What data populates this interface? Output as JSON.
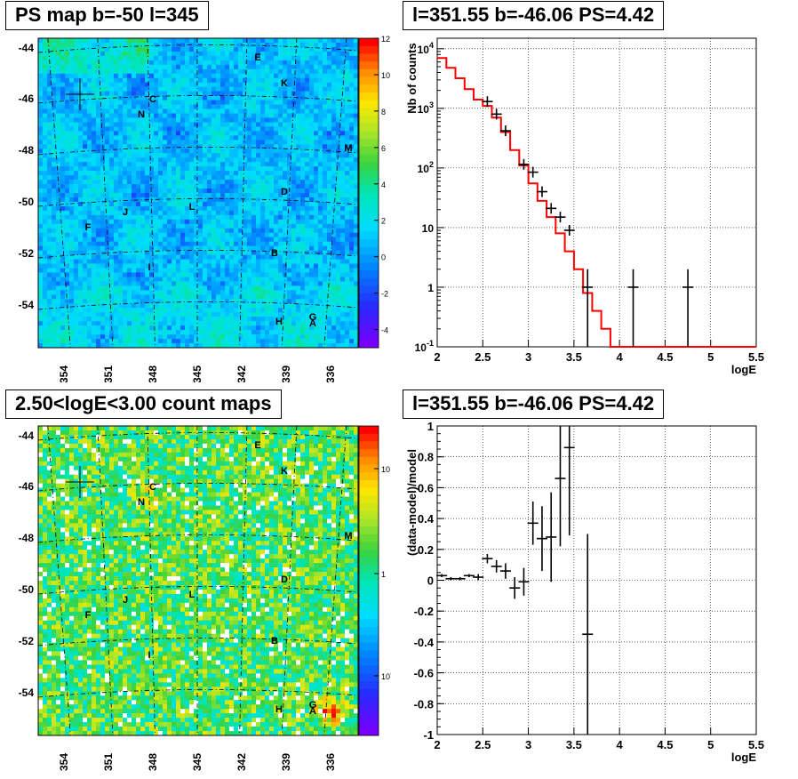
{
  "titles": {
    "top_left": "PS map b=-50 l=345",
    "top_right": "l=351.55 b=-46.06 PS=4.42",
    "bottom_left": "2.50<logE<3.00 count maps",
    "bottom_right": "l=351.55 b=-46.06 PS=4.42"
  },
  "chart_data": [
    {
      "type": "heatmap",
      "title": "PS map b=-50 l=345",
      "lat_ticks": [
        -44,
        -46,
        -48,
        -50,
        -52,
        -54
      ],
      "lon_ticks": [
        354,
        351,
        348,
        345,
        342,
        339,
        336
      ],
      "colorbar_ticks": [
        "12",
        "10",
        "8",
        "6",
        "4",
        "2",
        "0",
        "-2",
        "-4"
      ],
      "colorbar_range": [
        -5,
        12
      ],
      "source_labels": [
        "E",
        "K",
        "C",
        "N",
        "M",
        "D",
        "J",
        "L",
        "F",
        "B",
        "I",
        "H",
        "G",
        "A"
      ]
    },
    {
      "type": "line",
      "title": "l=351.55 b=-46.06 PS=4.42",
      "xlabel": "logE",
      "ylabel": "Nb of counts",
      "xlim": [
        2,
        5.5
      ],
      "ylim": [
        0.1,
        15000
      ],
      "yscale": "log",
      "x_ticks": [
        "2",
        "2.5",
        "3",
        "3.5",
        "4",
        "4.5",
        "5",
        "5.5"
      ],
      "y_ticks": [
        "10^-1",
        "1",
        "10",
        "10^2",
        "10^3",
        "10^4"
      ],
      "grid": true,
      "series": [
        {
          "kind": "step-histogram",
          "color": "#ff0000",
          "bin_width": 0.1,
          "edges_start": 2.0,
          "values": [
            7000,
            4800,
            3200,
            2100,
            1400,
            1100,
            700,
            400,
            200,
            110,
            55,
            28,
            15,
            8,
            4,
            2,
            0.8,
            0.4,
            0.2,
            0.1,
            0.1,
            0.1,
            0.1,
            0.1,
            0.1,
            0.1,
            0.1,
            0.1,
            0.1,
            0.1,
            0.1,
            0.1,
            0.1,
            0.1,
            0.1
          ]
        },
        {
          "kind": "data-points",
          "color": "#000000",
          "points": [
            {
              "x": 2.55,
              "y": 1300
            },
            {
              "x": 2.65,
              "y": 800
            },
            {
              "x": 2.75,
              "y": 420
            },
            {
              "x": 2.95,
              "y": 115
            },
            {
              "x": 3.05,
              "y": 85
            },
            {
              "x": 3.15,
              "y": 40
            },
            {
              "x": 3.25,
              "y": 21
            },
            {
              "x": 3.35,
              "y": 15
            },
            {
              "x": 3.45,
              "y": 9
            },
            {
              "x": 3.65,
              "y": 1,
              "ylo": 0.1,
              "yhi": 2
            },
            {
              "x": 4.15,
              "y": 1,
              "ylo": 0.1,
              "yhi": 2
            },
            {
              "x": 4.75,
              "y": 1,
              "ylo": 0.1,
              "yhi": 2
            }
          ]
        }
      ]
    },
    {
      "type": "heatmap",
      "title": "2.50<logE<3.00 count maps",
      "lat_ticks": [
        -44,
        -46,
        -48,
        -50,
        -52,
        -54
      ],
      "lon_ticks": [
        354,
        351,
        348,
        345,
        342,
        339,
        336
      ],
      "colorbar_ticks": [
        "10",
        "1",
        "10^-1"
      ],
      "colorbar_scale": "log",
      "source_labels": [
        "E",
        "K",
        "C",
        "N",
        "M",
        "D",
        "J",
        "L",
        "F",
        "B",
        "I",
        "H",
        "G",
        "A"
      ]
    },
    {
      "type": "scatter",
      "title": "l=351.55 b=-46.06 PS=4.42",
      "xlabel": "logE",
      "ylabel": "(data-model)/model",
      "xlim": [
        2,
        5.5
      ],
      "ylim": [
        -1,
        1
      ],
      "x_ticks": [
        "2",
        "2.5",
        "3",
        "3.5",
        "4",
        "4.5",
        "5",
        "5.5"
      ],
      "y_ticks": [
        "-1",
        "-0.8",
        "-0.6",
        "-0.4",
        "-0.2",
        "0",
        "0.2",
        "0.4",
        "0.6",
        "0.8",
        "1"
      ],
      "grid": true,
      "points": [
        {
          "x": 2.05,
          "y": 0.03,
          "err": 0.01
        },
        {
          "x": 2.15,
          "y": 0.01,
          "err": 0.01
        },
        {
          "x": 2.25,
          "y": 0.01,
          "err": 0.01
        },
        {
          "x": 2.35,
          "y": 0.03,
          "err": 0.01
        },
        {
          "x": 2.45,
          "y": 0.02,
          "err": 0.02
        },
        {
          "x": 2.55,
          "y": 0.14,
          "err": 0.03
        },
        {
          "x": 2.65,
          "y": 0.09,
          "err": 0.04
        },
        {
          "x": 2.75,
          "y": 0.06,
          "err": 0.05
        },
        {
          "x": 2.85,
          "y": -0.05,
          "err": 0.07
        },
        {
          "x": 2.95,
          "y": -0.01,
          "err": 0.09
        },
        {
          "x": 3.05,
          "y": 0.37,
          "err": 0.14
        },
        {
          "x": 3.15,
          "y": 0.27,
          "err": 0.21
        },
        {
          "x": 3.25,
          "y": 0.28,
          "err": 0.29
        },
        {
          "x": 3.35,
          "y": 0.66,
          "err": 0.44
        },
        {
          "x": 3.45,
          "y": 0.86,
          "err": 0.57
        },
        {
          "x": 3.65,
          "y": -0.35,
          "err": 0.65
        }
      ]
    }
  ]
}
